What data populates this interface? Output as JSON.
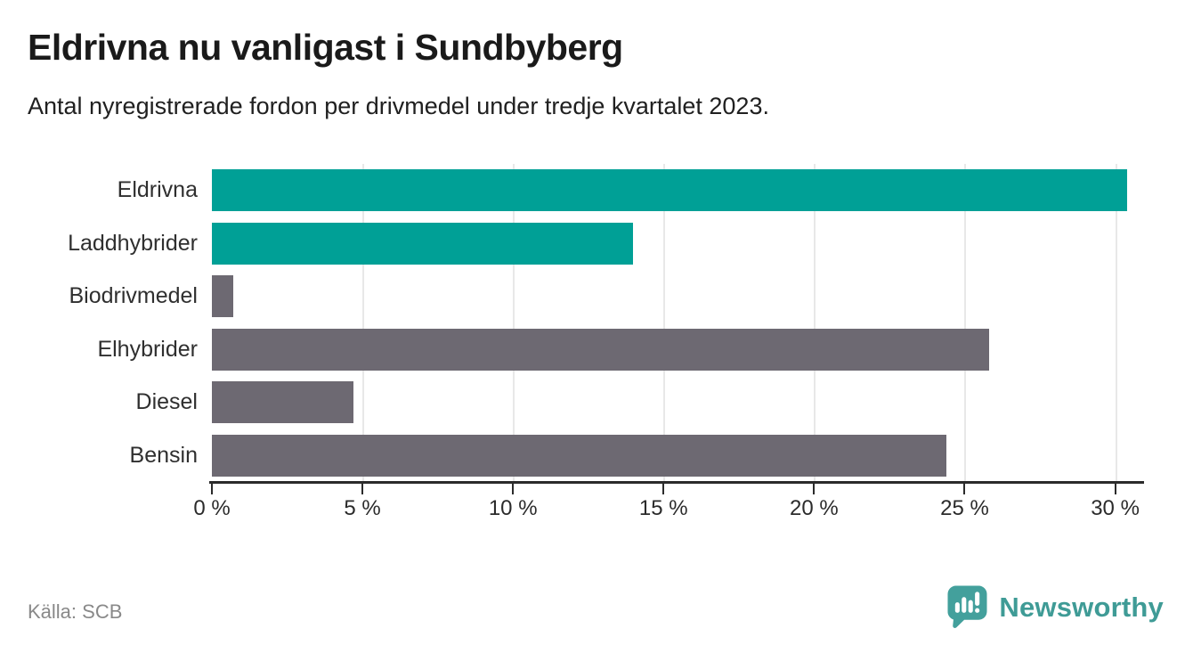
{
  "chart_data": {
    "type": "bar",
    "orientation": "horizontal",
    "title": "Eldrivna nu vanligast i Sundbyberg",
    "subtitle": "Antal nyregistrerade fordon per drivmedel under tredje kvartalet 2023.",
    "categories": [
      "Eldrivna",
      "Laddhybrider",
      "Biodrivmedel",
      "Elhybrider",
      "Diesel",
      "Bensin"
    ],
    "values": [
      30.4,
      14.0,
      0.7,
      25.8,
      4.7,
      24.4
    ],
    "value_unit": "%",
    "highlighted": [
      true,
      true,
      false,
      false,
      false,
      false
    ],
    "x_ticks": [
      {
        "value": 0,
        "label": "0 %"
      },
      {
        "value": 5,
        "label": "5 %"
      },
      {
        "value": 10,
        "label": "10 %"
      },
      {
        "value": 15,
        "label": "15 %"
      },
      {
        "value": 20,
        "label": "20 %"
      },
      {
        "value": 25,
        "label": "25 %"
      },
      {
        "value": 30,
        "label": "30 %"
      }
    ],
    "xlim": [
      0,
      30.9
    ],
    "xlabel": "",
    "ylabel": "",
    "grid": true,
    "legend": "none",
    "colors": {
      "highlight_bar": "#00a096",
      "default_bar": "#6d6972",
      "gridline": "#e8e8e8",
      "axis": "#2b2b2b"
    }
  },
  "footer": {
    "source": "Källa: SCB",
    "brand": "Newsworthy",
    "brand_color": "#3f9b96",
    "logo_color": "#43a09c"
  }
}
